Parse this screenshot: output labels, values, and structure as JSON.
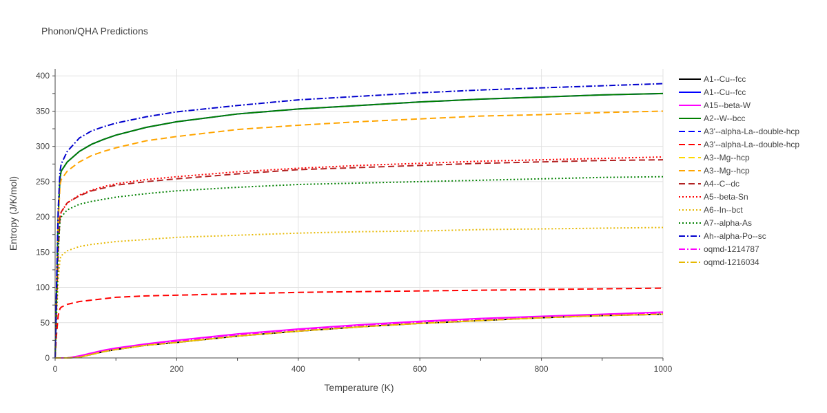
{
  "chart_data": {
    "type": "line",
    "title": "Phonon/QHA Predictions",
    "xlabel": "Temperature (K)",
    "ylabel": "Entropy (J/K/mol)",
    "xlim": [
      0,
      1000
    ],
    "ylim": [
      0,
      410
    ],
    "x_ticks": [
      0,
      200,
      400,
      600,
      800,
      1000
    ],
    "y_ticks": [
      0,
      50,
      100,
      150,
      200,
      250,
      300,
      350,
      400
    ],
    "grid": true,
    "legend_position": "right",
    "series": [
      {
        "name": "A1--Cu--fcc",
        "color": "#000000",
        "dash": "solid",
        "x": [
          0,
          20,
          40,
          60,
          80,
          100,
          150,
          200,
          300,
          400,
          500,
          600,
          700,
          800,
          900,
          1000
        ],
        "y": [
          0,
          0,
          1,
          5,
          9,
          12,
          18,
          22,
          31,
          38,
          44,
          49,
          53,
          57,
          60,
          62
        ]
      },
      {
        "name": "A1--Cu--fcc",
        "color": "#0000ff",
        "dash": "solid",
        "x": [
          0,
          2,
          5,
          8,
          10,
          20,
          40,
          60,
          80,
          100,
          150,
          200,
          300,
          400,
          500,
          600,
          700,
          800,
          900,
          1000
        ],
        "y": [
          0,
          80,
          200,
          255,
          265,
          278,
          293,
          303,
          310,
          316,
          327,
          335,
          346,
          353,
          358,
          363,
          367,
          370,
          373,
          375
        ]
      },
      {
        "name": "A15--beta-W",
        "color": "#ff00ff",
        "dash": "solid",
        "x": [
          0,
          20,
          40,
          60,
          80,
          100,
          150,
          200,
          300,
          400,
          500,
          600,
          700,
          800,
          900,
          1000
        ],
        "y": [
          0,
          0,
          3,
          7,
          11,
          14,
          20,
          25,
          34,
          41,
          47,
          52,
          56,
          59,
          62,
          65
        ]
      },
      {
        "name": "A2--W--bcc",
        "color": "#008000",
        "dash": "solid",
        "x": [
          0,
          2,
          5,
          8,
          10,
          20,
          40,
          60,
          80,
          100,
          150,
          200,
          300,
          400,
          500,
          600,
          700,
          800,
          900,
          1000
        ],
        "y": [
          0,
          80,
          200,
          255,
          265,
          278,
          293,
          303,
          310,
          316,
          327,
          335,
          346,
          353,
          358,
          363,
          367,
          370,
          373,
          375
        ]
      },
      {
        "name": "A3'--alpha-La--double-hcp",
        "color": "#0000ff",
        "dash": "dash",
        "x": [
          0,
          20,
          40,
          60,
          80,
          100,
          150,
          200,
          300,
          400,
          500,
          600,
          700,
          800,
          900,
          1000
        ],
        "y": [
          0,
          0,
          1,
          5,
          9,
          12,
          18,
          22,
          31,
          38,
          44,
          49,
          53,
          57,
          60,
          62
        ]
      },
      {
        "name": "A3'--alpha-La--double-hcp",
        "color": "#ff0000",
        "dash": "dash",
        "x": [
          0,
          2,
          5,
          8,
          10,
          20,
          40,
          60,
          80,
          100,
          150,
          200,
          300,
          400,
          500,
          600,
          700,
          800,
          900,
          1000
        ],
        "y": [
          0,
          30,
          60,
          70,
          72,
          76,
          80,
          82,
          84,
          86,
          88,
          89,
          91,
          93,
          94,
          95,
          96,
          97,
          98,
          99
        ]
      },
      {
        "name": "A3--Mg--hcp",
        "color": "#ffd700",
        "dash": "dash",
        "x": [
          0,
          20,
          40,
          60,
          80,
          100,
          150,
          200,
          300,
          400,
          500,
          600,
          700,
          800,
          900,
          1000
        ],
        "y": [
          0,
          0,
          1,
          5,
          9,
          12,
          18,
          22,
          31,
          38,
          44,
          49,
          53,
          57,
          60,
          62
        ]
      },
      {
        "name": "A3--Mg--hcp",
        "color": "#ffa500",
        "dash": "dash",
        "x": [
          0,
          2,
          5,
          8,
          10,
          20,
          40,
          60,
          80,
          100,
          150,
          200,
          300,
          400,
          500,
          600,
          700,
          800,
          900,
          1000
        ],
        "y": [
          0,
          80,
          190,
          245,
          253,
          265,
          278,
          287,
          293,
          298,
          308,
          314,
          324,
          330,
          335,
          339,
          343,
          345,
          348,
          350
        ]
      },
      {
        "name": "A4--C--dc",
        "color": "#b22222",
        "dash": "dash",
        "x": [
          0,
          2,
          5,
          8,
          10,
          20,
          40,
          60,
          80,
          100,
          150,
          200,
          300,
          400,
          500,
          600,
          700,
          800,
          900,
          1000
        ],
        "y": [
          0,
          60,
          150,
          200,
          207,
          220,
          230,
          237,
          241,
          245,
          250,
          254,
          261,
          267,
          270,
          273,
          276,
          278,
          280,
          281
        ]
      },
      {
        "name": "A5--beta-Sn",
        "color": "#ff0000",
        "dash": "dot",
        "x": [
          0,
          2,
          5,
          8,
          10,
          20,
          40,
          60,
          80,
          100,
          150,
          200,
          300,
          400,
          500,
          600,
          700,
          800,
          900,
          1000
        ],
        "y": [
          0,
          60,
          150,
          200,
          207,
          220,
          231,
          238,
          243,
          247,
          253,
          257,
          264,
          269,
          273,
          276,
          279,
          281,
          283,
          285
        ]
      },
      {
        "name": "A6--In--bct",
        "color": "#e6b800",
        "dash": "dot",
        "x": [
          0,
          2,
          5,
          8,
          10,
          20,
          40,
          60,
          80,
          100,
          150,
          200,
          300,
          400,
          500,
          600,
          700,
          800,
          900,
          1000
        ],
        "y": [
          0,
          50,
          110,
          140,
          145,
          152,
          158,
          161,
          163,
          165,
          168,
          171,
          174,
          177,
          179,
          180,
          182,
          183,
          184,
          185
        ]
      },
      {
        "name": "A7--alpha-As",
        "color": "#008000",
        "dash": "dot",
        "x": [
          0,
          2,
          5,
          8,
          10,
          20,
          40,
          60,
          80,
          100,
          150,
          200,
          300,
          400,
          500,
          600,
          700,
          800,
          900,
          1000
        ],
        "y": [
          0,
          60,
          150,
          195,
          200,
          210,
          218,
          222,
          225,
          228,
          233,
          237,
          242,
          246,
          248,
          250,
          252,
          254,
          256,
          257
        ]
      },
      {
        "name": "Ah--alpha-Po--sc",
        "color": "#0000cd",
        "dash": "dashdot",
        "x": [
          0,
          2,
          5,
          8,
          10,
          20,
          40,
          60,
          80,
          100,
          150,
          200,
          300,
          400,
          500,
          600,
          700,
          800,
          900,
          1000
        ],
        "y": [
          0,
          90,
          210,
          265,
          275,
          293,
          312,
          322,
          328,
          333,
          342,
          349,
          358,
          366,
          371,
          376,
          380,
          383,
          386,
          389
        ]
      },
      {
        "name": "oqmd-1214787",
        "color": "#ff00ff",
        "dash": "dashdot",
        "x": [
          0,
          20,
          40,
          60,
          80,
          100,
          150,
          200,
          300,
          400,
          500,
          600,
          700,
          800,
          900,
          1000
        ],
        "y": [
          0,
          0,
          2,
          6,
          10,
          13,
          19,
          24,
          33,
          40,
          46,
          51,
          55,
          58,
          61,
          64
        ]
      },
      {
        "name": "oqmd-1216034",
        "color": "#e6b800",
        "dash": "dashdot",
        "x": [
          0,
          20,
          40,
          60,
          80,
          100,
          150,
          200,
          300,
          400,
          500,
          600,
          700,
          800,
          900,
          1000
        ],
        "y": [
          0,
          0,
          1,
          5,
          9,
          12,
          18,
          22,
          31,
          38,
          44,
          49,
          53,
          57,
          60,
          62
        ]
      }
    ]
  }
}
